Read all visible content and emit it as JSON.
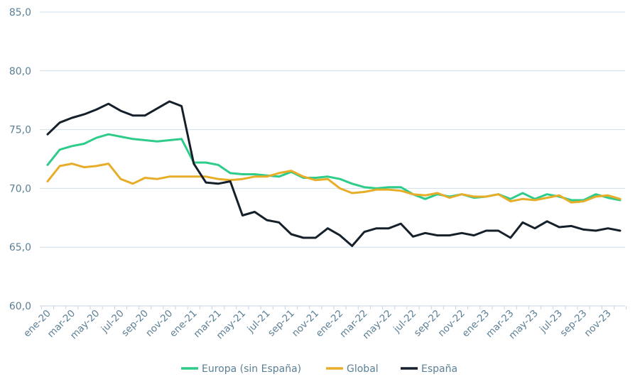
{
  "chart_data": {
    "type": "line",
    "ylim": [
      60,
      85
    ],
    "yticks": [
      "60,0",
      "65,0",
      "70,0",
      "75,0",
      "80,0",
      "85,0"
    ],
    "ytick_values": [
      60,
      65,
      70,
      75,
      80,
      85
    ],
    "x_tick_labels": [
      "ene-20",
      "mar-20",
      "may-20",
      "jul-20",
      "sep-20",
      "nov-20",
      "ene-21",
      "mar-21",
      "may-21",
      "jul-21",
      "sep-21",
      "nov-21",
      "ene-22",
      "mar-22",
      "may-22",
      "jul-22",
      "sep-22",
      "nov-22",
      "ene-23",
      "mar-23",
      "may-23",
      "jul-23",
      "sep-23",
      "nov-23"
    ],
    "x": [
      "ene-20",
      "feb-20",
      "mar-20",
      "abr-20",
      "may-20",
      "jun-20",
      "jul-20",
      "ago-20",
      "sep-20",
      "oct-20",
      "nov-20",
      "dic-20",
      "ene-21",
      "feb-21",
      "mar-21",
      "abr-21",
      "may-21",
      "jun-21",
      "jul-21",
      "ago-21",
      "sep-21",
      "oct-21",
      "nov-21",
      "dic-21",
      "ene-22",
      "feb-22",
      "mar-22",
      "abr-22",
      "may-22",
      "jun-22",
      "jul-22",
      "ago-22",
      "sep-22",
      "oct-22",
      "nov-22",
      "dic-22",
      "ene-23",
      "feb-23",
      "mar-23",
      "abr-23",
      "may-23",
      "jun-23",
      "jul-23",
      "ago-23",
      "sep-23",
      "oct-23",
      "nov-23",
      "dic-23"
    ],
    "grid": true,
    "legend_position": "bottom",
    "series": [
      {
        "name": "Europa (sin España)",
        "color": "#2ecc8a",
        "values": [
          72.0,
          73.3,
          73.6,
          73.8,
          74.3,
          74.6,
          74.4,
          74.2,
          74.1,
          74.0,
          74.1,
          74.2,
          72.2,
          72.2,
          72.0,
          71.3,
          71.2,
          71.2,
          71.1,
          71.0,
          71.4,
          70.9,
          70.9,
          71.0,
          70.8,
          70.4,
          70.1,
          70.0,
          70.1,
          70.1,
          69.5,
          69.1,
          69.5,
          69.3,
          69.5,
          69.2,
          69.3,
          69.5,
          69.1,
          69.6,
          69.1,
          69.5,
          69.3,
          69.0,
          69.0,
          69.5,
          69.2,
          69.0
        ]
      },
      {
        "name": "Global",
        "color": "#e8ad28",
        "values": [
          70.6,
          71.9,
          72.1,
          71.8,
          71.9,
          72.1,
          70.8,
          70.4,
          70.9,
          70.8,
          71.0,
          71.0,
          71.0,
          71.0,
          70.8,
          70.7,
          70.8,
          71.0,
          71.0,
          71.3,
          71.5,
          71.0,
          70.7,
          70.8,
          70.0,
          69.6,
          69.7,
          69.9,
          69.9,
          69.8,
          69.5,
          69.4,
          69.6,
          69.2,
          69.5,
          69.3,
          69.3,
          69.5,
          68.9,
          69.1,
          69.0,
          69.2,
          69.4,
          68.8,
          68.9,
          69.3,
          69.4,
          69.1
        ]
      },
      {
        "name": "España",
        "color": "#15202b",
        "values": [
          74.6,
          75.6,
          76.0,
          76.3,
          76.7,
          77.2,
          76.6,
          76.2,
          76.2,
          76.8,
          77.4,
          77.0,
          72.1,
          70.5,
          70.4,
          70.6,
          67.7,
          68.0,
          67.3,
          67.1,
          66.1,
          65.8,
          65.8,
          66.6,
          66.0,
          65.1,
          66.3,
          66.6,
          66.6,
          67.0,
          65.9,
          66.2,
          66.0,
          66.0,
          66.2,
          66.0,
          66.4,
          66.4,
          65.8,
          67.1,
          66.6,
          67.2,
          66.7,
          66.8,
          66.5,
          66.4,
          66.6,
          66.4
        ]
      }
    ]
  }
}
